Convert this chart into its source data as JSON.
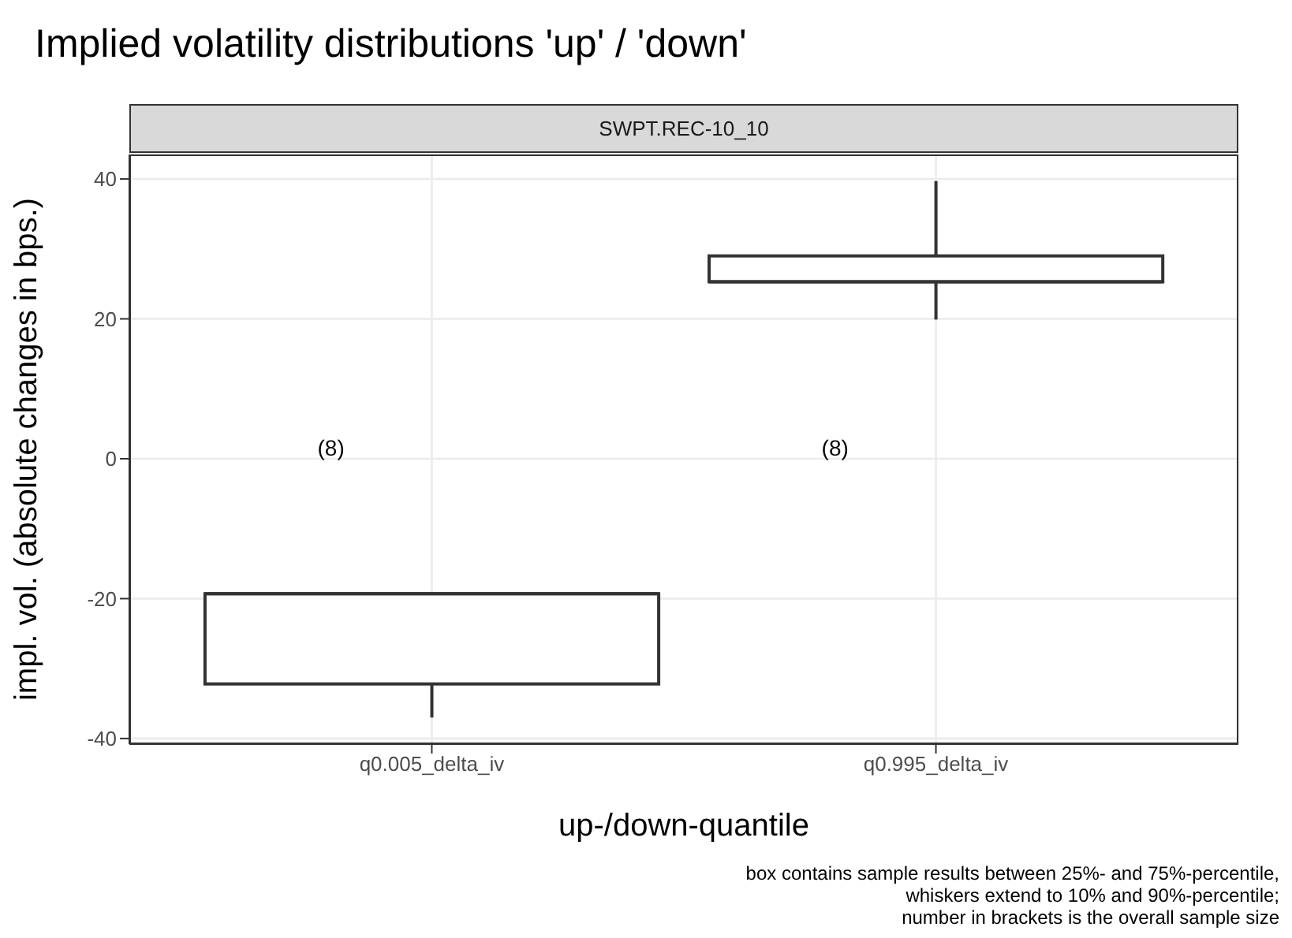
{
  "chart_data": {
    "type": "box",
    "title": "Implied volatility distributions 'up' / 'down'",
    "subtitle": "SWPT.REC-10_10",
    "xlabel": "up-/down-quantile",
    "ylabel": "impl. vol. (absolute changes in bps.)",
    "categories": [
      "q0.005_delta_iv",
      "q0.995_delta_iv"
    ],
    "boxes": [
      {
        "low": -37,
        "q1": -32.2,
        "median": -19.3,
        "q3": -19.3,
        "high": -19.3
      },
      {
        "low": 19.9,
        "q1": 25.3,
        "median": 25.3,
        "q3": 29,
        "high": 39.7
      }
    ],
    "ylim": [
      -40.8,
      43.5
    ],
    "yticks": [
      -40,
      -20,
      0,
      20,
      40
    ],
    "grid": true,
    "annotations": [
      "(8)",
      "(8)",
      "box contains sample results between 25%- and 75%-percentile,\nwhiskers extend to 10% and 90%-percentile;\nnumber in brackets is the overall sample size"
    ]
  }
}
